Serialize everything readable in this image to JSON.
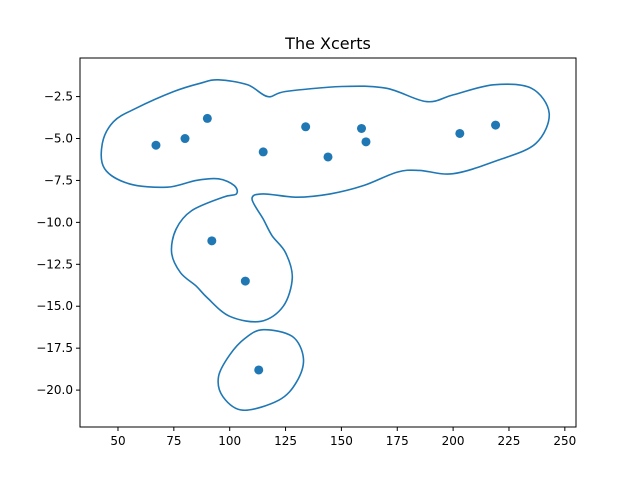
{
  "chart_data": {
    "type": "scatter",
    "title": "The Xcerts",
    "xlabel": "",
    "ylabel": "",
    "xlim": [
      33,
      255
    ],
    "ylim": [
      -22.2,
      -0.2
    ],
    "xticks": [
      50,
      75,
      100,
      125,
      150,
      175,
      200,
      225,
      250
    ],
    "yticks": [
      -2.5,
      -5.0,
      -7.5,
      -10.0,
      -12.5,
      -15.0,
      -17.5,
      -20.0
    ],
    "xtick_labels": [
      "50",
      "75",
      "100",
      "125",
      "150",
      "175",
      "200",
      "225",
      "250"
    ],
    "ytick_labels": [
      "−2.5",
      "−5.0",
      "−7.5",
      "−10.0",
      "−12.5",
      "−15.0",
      "−17.5",
      "−20.0"
    ],
    "grid": false,
    "legend": "none",
    "colors": {
      "series": "#1f77b4",
      "axes": "#000000",
      "background": "#ffffff"
    },
    "points": [
      {
        "x": 67,
        "y": -5.4
      },
      {
        "x": 80,
        "y": -5.0
      },
      {
        "x": 90,
        "y": -3.8
      },
      {
        "x": 115,
        "y": -5.8
      },
      {
        "x": 134,
        "y": -4.3
      },
      {
        "x": 144,
        "y": -6.1
      },
      {
        "x": 159,
        "y": -4.4
      },
      {
        "x": 161,
        "y": -5.2
      },
      {
        "x": 203,
        "y": -4.7
      },
      {
        "x": 219,
        "y": -4.2
      },
      {
        "x": 92,
        "y": -11.1
      },
      {
        "x": 107,
        "y": -13.5
      },
      {
        "x": 113,
        "y": -18.8
      }
    ],
    "contours": [
      {
        "name": "upper",
        "path": [
          [
            95,
            -1.5
          ],
          [
            108,
            -1.8
          ],
          [
            117,
            -2.5
          ],
          [
            125,
            -2.2
          ],
          [
            150,
            -1.9
          ],
          [
            170,
            -2.0
          ],
          [
            188,
            -2.8
          ],
          [
            200,
            -2.4
          ],
          [
            218,
            -1.8
          ],
          [
            235,
            -2.0
          ],
          [
            243,
            -3.5
          ],
          [
            237,
            -5.3
          ],
          [
            220,
            -6.3
          ],
          [
            200,
            -7.1
          ],
          [
            185,
            -6.9
          ],
          [
            175,
            -7.0
          ],
          [
            160,
            -7.8
          ],
          [
            145,
            -8.3
          ],
          [
            130,
            -8.5
          ],
          [
            115,
            -8.3
          ],
          [
            110,
            -8.6
          ],
          [
            115,
            -9.8
          ],
          [
            119,
            -10.8
          ],
          [
            125,
            -11.8
          ],
          [
            128,
            -13.3
          ],
          [
            124,
            -15.0
          ],
          [
            114,
            -15.9
          ],
          [
            100,
            -15.6
          ],
          [
            90,
            -14.5
          ],
          [
            85,
            -13.8
          ],
          [
            78,
            -13.0
          ],
          [
            74,
            -11.8
          ],
          [
            76,
            -10.4
          ],
          [
            83,
            -9.3
          ],
          [
            97,
            -8.5
          ],
          [
            103,
            -8.3
          ],
          [
            102,
            -7.8
          ],
          [
            95,
            -7.4
          ],
          [
            85,
            -7.5
          ],
          [
            72,
            -7.9
          ],
          [
            55,
            -7.7
          ],
          [
            44,
            -6.8
          ],
          [
            43,
            -5.3
          ],
          [
            48,
            -4.0
          ],
          [
            58,
            -3.2
          ],
          [
            75,
            -2.2
          ],
          [
            87,
            -1.7
          ]
        ]
      },
      {
        "name": "lower",
        "path": [
          [
            115,
            -16.4
          ],
          [
            128,
            -16.8
          ],
          [
            133,
            -18.1
          ],
          [
            130,
            -19.5
          ],
          [
            122,
            -20.6
          ],
          [
            106,
            -21.2
          ],
          [
            97,
            -20.4
          ],
          [
            95,
            -19.2
          ],
          [
            100,
            -17.9
          ],
          [
            107,
            -16.9
          ]
        ]
      }
    ]
  }
}
